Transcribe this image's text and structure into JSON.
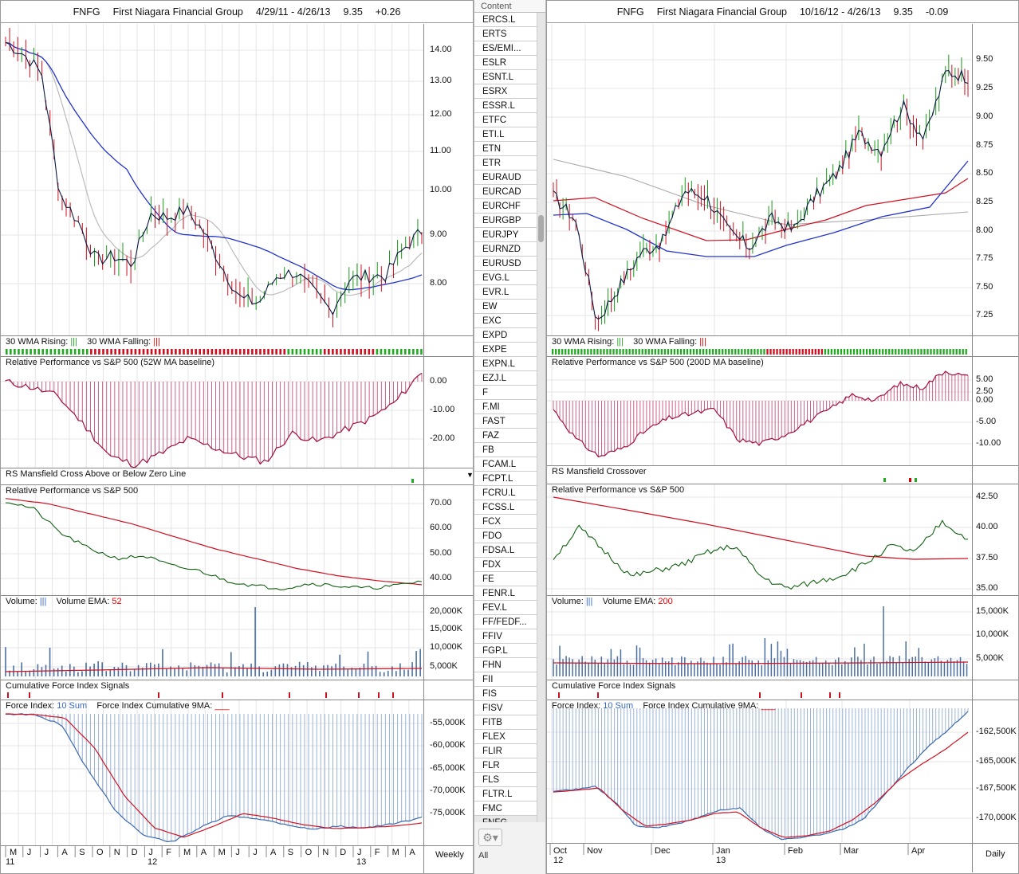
{
  "list": {
    "header": "Content",
    "items": [
      "ERCS.L",
      "ERTS",
      "ES/EMI...",
      "ESLR",
      "ESNT.L",
      "ESRX",
      "ESSR.L",
      "ETFC",
      "ETI.L",
      "ETN",
      "ETR",
      "EURAUD",
      "EURCAD",
      "EURCHF",
      "EURGBP",
      "EURJPY",
      "EURNZD",
      "EURUSD",
      "EVG.L",
      "EVR.L",
      "EW",
      "EXC",
      "EXPD",
      "EXPE",
      "EXPN.L",
      "EZJ.L",
      "F",
      "F.MI",
      "FAST",
      "FAZ",
      "FB",
      "FCAM.L",
      "FCPT.L",
      "FCRU.L",
      "FCSS.L",
      "FCX",
      "FDO",
      "FDSA.L",
      "FDX",
      "FE",
      "FENR.L",
      "FEV.L",
      "FF/FEDF...",
      "FFIV",
      "FGP.L",
      "FHN",
      "FII",
      "FIS",
      "FISV",
      "FITB",
      "FLEX",
      "FLIR",
      "FLR",
      "FLS",
      "FLTR.L",
      "FMC",
      "FNFG"
    ],
    "selected": "FNFG",
    "footer": "All",
    "gear_icon": "gear-icon"
  },
  "left": {
    "header": {
      "symbol": "FNFG",
      "name": "First Niagara Financial Group",
      "range": "4/29/11 - 4/26/13",
      "price": "9.35",
      "change": "+0.26"
    },
    "wma_label": "30 WMA Rising:",
    "wma_falling": "30 WMA Falling:",
    "rp_label": "Relative Performance vs S&P 500 (52W MA baseline)",
    "rsm_label": "RS Mansfield Cross Above or Below Zero Line",
    "rp2_label": "Relative Performance vs S&P 500",
    "vol_label": "Volume:",
    "vol_ema": "Volume EMA:",
    "vol_ema_n": "52",
    "cfi_label": "Cumulative Force Index Signals",
    "fi_label": "Force Index:",
    "fi_sum": "10 Sum",
    "fi_cum": "Force Index Cumulative 9MA:",
    "period": "Weekly",
    "x_months": [
      "M",
      "J",
      "J",
      "A",
      "S",
      "O",
      "N",
      "D",
      "J",
      "F",
      "M",
      "A",
      "M",
      "J",
      "J",
      "A",
      "S",
      "O",
      "N",
      "D",
      "J",
      "F",
      "M",
      "A"
    ],
    "x_years": [
      "11",
      "12",
      "13"
    ],
    "price_ticks": [
      "14.00",
      "13.00",
      "12.00",
      "11.00",
      "10.00",
      "9.00",
      "8.00"
    ],
    "rp_ticks": [
      "0.00",
      "-10.00",
      "-20.00"
    ],
    "rp2_ticks": [
      "70.00",
      "60.00",
      "50.00",
      "40.00"
    ],
    "vol_ticks": [
      "20,000K",
      "15,000K",
      "10,000K",
      "5,000K"
    ],
    "fi_ticks": [
      "-55,000K",
      "-60,000K",
      "-65,000K",
      "-70,000K",
      "-75,000K"
    ]
  },
  "right": {
    "header": {
      "symbol": "FNFG",
      "name": "First Niagara Financial Group",
      "range": "10/16/12 - 4/26/13",
      "price": "9.35",
      "change": "-0.09"
    },
    "wma_label": "30 WMA Rising:",
    "wma_falling": "30 WMA Falling:",
    "rp_label": "Relative Performance vs S&P 500 (200D MA baseline)",
    "rsm_label": "RS Mansfield Crossover",
    "rp2_label": "Relative Performance vs S&P 500",
    "vol_label": "Volume:",
    "vol_ema": "Volume EMA:",
    "vol_ema_n": "200",
    "cfi_label": "Cumulative Force Index Signals",
    "fi_label": "Force Index:",
    "fi_sum": "10 Sum",
    "fi_cum": "Force Index Cumulative 9MA:",
    "period": "Daily",
    "x_months": [
      "Oct",
      "Nov",
      "Dec",
      "Jan",
      "Feb",
      "Mar",
      "Apr"
    ],
    "x_years": [
      "12",
      "13"
    ],
    "price_ticks": [
      "9.50",
      "9.25",
      "9.00",
      "8.75",
      "8.50",
      "8.25",
      "8.00",
      "7.75",
      "7.50",
      "7.25"
    ],
    "rp_ticks": [
      "5.00",
      "2.50",
      "0.00",
      "-5.00",
      "-10.00"
    ],
    "rp2_ticks": [
      "42.50",
      "40.00",
      "37.50",
      "35.00"
    ],
    "vol_ticks": [
      "15,000K",
      "10,000K",
      "5,000K"
    ],
    "fi_ticks": [
      "-162,500K",
      "-165,000K",
      "-167,500K",
      "-170,000K"
    ]
  },
  "chart_data": [
    {
      "type": "line",
      "title": "FNFG First Niagara Financial Group 4/29/11 - 4/26/13 Weekly",
      "x": [
        "2011-05",
        "2011-06",
        "2011-07",
        "2011-08",
        "2011-09",
        "2011-10",
        "2011-11",
        "2011-12",
        "2012-01",
        "2012-02",
        "2012-03",
        "2012-04",
        "2012-05",
        "2012-06",
        "2012-07",
        "2012-08",
        "2012-09",
        "2012-10",
        "2012-11",
        "2012-12",
        "2013-01",
        "2013-02",
        "2013-03",
        "2013-04"
      ],
      "series": [
        {
          "values": [
            14.2,
            13.9,
            13.4,
            10.3,
            9.6,
            8.6,
            8.7,
            8.5,
            9.8,
            9.7,
            9.9,
            9.3,
            8.4,
            7.6,
            7.5,
            8.2,
            8.3,
            7.8,
            7.3,
            8.1,
            8.2,
            8.2,
            8.9,
            9.35
          ]
        }
      ],
      "ylim": [
        7,
        14.8
      ]
    },
    {
      "type": "line",
      "title": "FNFG First Niagara Financial Group 10/16/12 - 4/26/13 Daily",
      "x": [
        "2012-10",
        "2012-11",
        "2012-12",
        "2013-01",
        "2013-02",
        "2013-03",
        "2013-04"
      ],
      "series": [
        {
          "values": [
            8.3,
            7.3,
            7.8,
            8.3,
            7.9,
            8.5,
            9.35
          ]
        }
      ],
      "ylim": [
        7.1,
        9.75
      ]
    }
  ]
}
